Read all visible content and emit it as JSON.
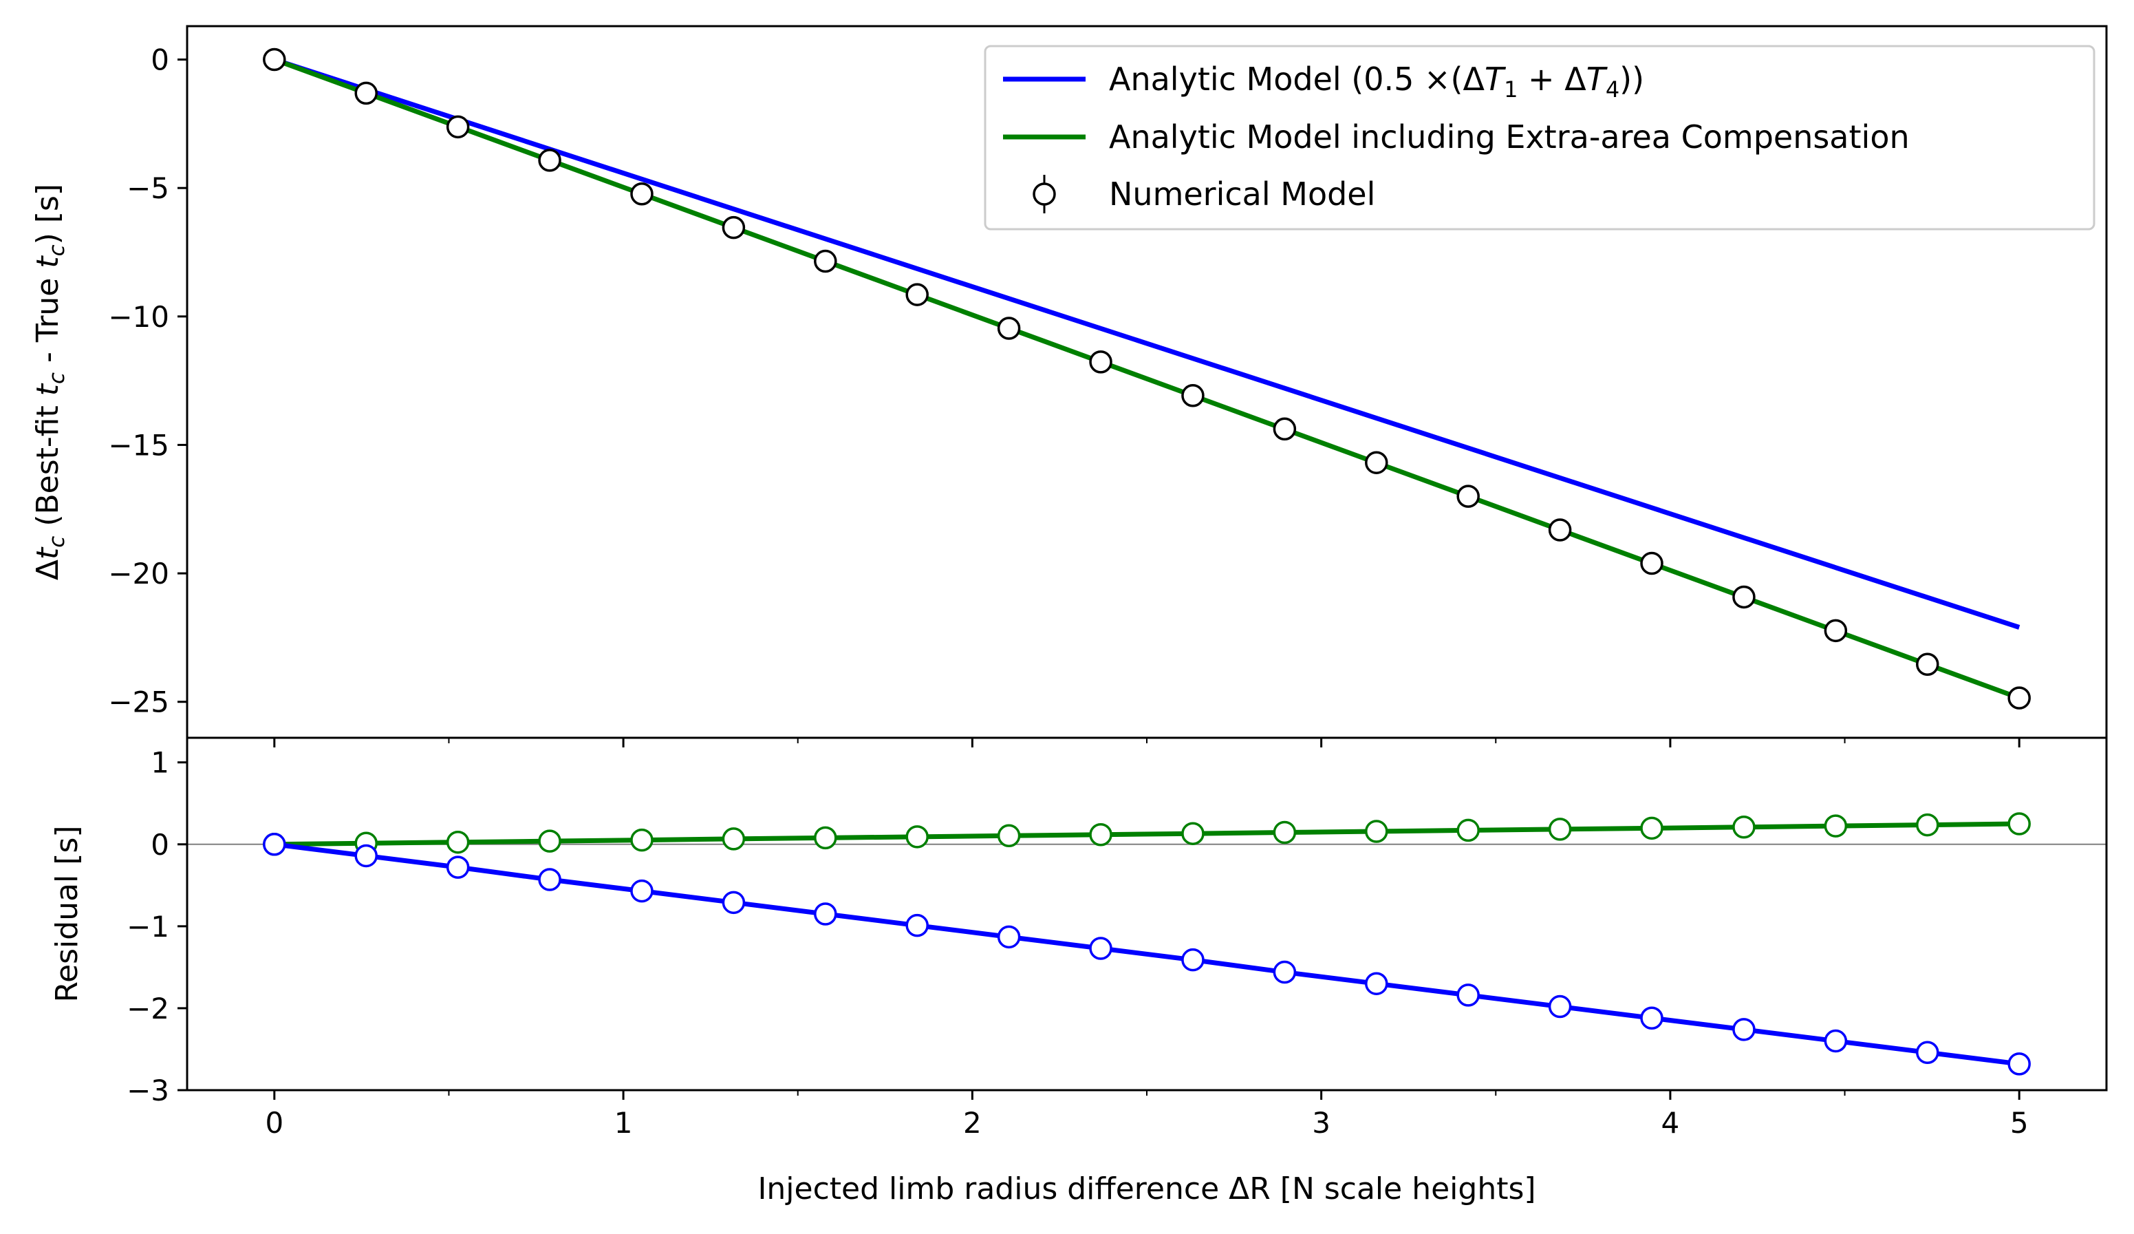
{
  "chart_data": [
    {
      "type": "line",
      "panel": "top",
      "xlabel": "",
      "ylabel": "Δt_c (Best-fit t_c - True t_c) [s]",
      "ylabel_parts": {
        "pre": "Δ",
        "t": "t",
        "c": "c",
        "mid": " (Best-fit ",
        "mid2": " - True ",
        "post": ") [s]"
      },
      "xlim": [
        -0.25,
        5.25
      ],
      "ylim": [
        -26.4,
        1.3
      ],
      "yticks": [
        0,
        -5,
        -10,
        -15,
        -20,
        -25
      ],
      "ytick_labels": [
        "0",
        "−5",
        "−10",
        "−15",
        "−20",
        "−25"
      ],
      "legend_position": "upper-right",
      "legend": {
        "analytic": "Analytic Model (0.5 ×(ΔT₁ + ΔT₄))",
        "analytic_parts": {
          "pre": "Analytic Model (0.5 ×(Δ",
          "T1": "T",
          "sub1": "1",
          "plus": " + Δ",
          "T4": "T",
          "sub4": "4",
          "post": "))"
        },
        "extra": "Analytic Model including Extra-area Compensation",
        "numerical": "Numerical Model"
      },
      "series": [
        {
          "name": "Analytic Model (0.5 ×(ΔT₁ + ΔT₄))",
          "color": "#0000ff",
          "x": [
            0,
            5
          ],
          "y": [
            0,
            -22.1
          ]
        },
        {
          "name": "Analytic Model including Extra-area Compensation",
          "color": "#008000",
          "x": [
            0,
            5
          ],
          "y": [
            0,
            -24.85
          ]
        },
        {
          "name": "Numerical Model",
          "marker": "open-circle",
          "edgecolor": "#000000",
          "x": [
            0,
            0.263,
            0.526,
            0.789,
            1.053,
            1.316,
            1.579,
            1.842,
            2.105,
            2.368,
            2.632,
            2.895,
            3.158,
            3.421,
            3.684,
            3.947,
            4.211,
            4.474,
            4.737,
            5.0
          ],
          "y": [
            0,
            -1.31,
            -2.62,
            -3.92,
            -5.23,
            -6.54,
            -7.85,
            -9.15,
            -10.46,
            -11.77,
            -13.08,
            -14.38,
            -15.69,
            -17.0,
            -18.31,
            -19.61,
            -20.92,
            -22.23,
            -23.54,
            -24.85
          ]
        }
      ]
    },
    {
      "type": "line",
      "panel": "bottom",
      "xlabel": "Injected limb radius difference ΔR [N scale heights]",
      "ylabel": "Residual [s]",
      "xlim": [
        -0.25,
        5.25
      ],
      "ylim": [
        -3.0,
        1.3
      ],
      "xticks": [
        0,
        1,
        2,
        3,
        4,
        5
      ],
      "xtick_labels": [
        "0",
        "1",
        "2",
        "3",
        "4",
        "5"
      ],
      "yticks": [
        1,
        0,
        -1,
        -2,
        -3
      ],
      "ytick_labels": [
        "1",
        "0",
        "−1",
        "−2",
        "−3"
      ],
      "reference_line_y": 0,
      "series": [
        {
          "color": "#008000",
          "x": [
            0,
            0.263,
            0.526,
            0.789,
            1.053,
            1.316,
            1.579,
            1.842,
            2.105,
            2.368,
            2.632,
            2.895,
            3.158,
            3.421,
            3.684,
            3.947,
            4.211,
            4.474,
            4.737,
            5.0
          ],
          "y": [
            0,
            0.013,
            0.026,
            0.039,
            0.052,
            0.066,
            0.079,
            0.092,
            0.105,
            0.118,
            0.131,
            0.145,
            0.158,
            0.171,
            0.184,
            0.197,
            0.21,
            0.224,
            0.237,
            0.25
          ]
        },
        {
          "color": "#0000ff",
          "x": [
            0,
            0.263,
            0.526,
            0.789,
            1.053,
            1.316,
            1.579,
            1.842,
            2.105,
            2.368,
            2.632,
            2.895,
            3.158,
            3.421,
            3.684,
            3.947,
            4.211,
            4.474,
            4.737,
            5.0
          ],
          "y": [
            0,
            -0.14,
            -0.28,
            -0.43,
            -0.57,
            -0.71,
            -0.85,
            -0.99,
            -1.13,
            -1.27,
            -1.41,
            -1.56,
            -1.7,
            -1.84,
            -1.98,
            -2.12,
            -2.26,
            -2.4,
            -2.54,
            -2.68
          ]
        }
      ]
    }
  ]
}
